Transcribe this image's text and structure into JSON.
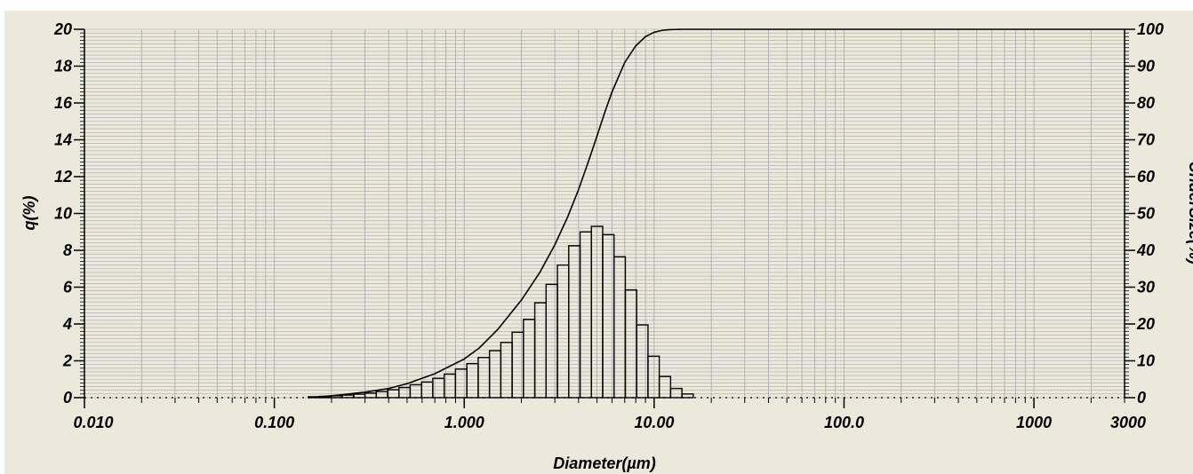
{
  "colors": {
    "background": "#ECE9DC",
    "grid": "#A8A8A8",
    "bars": "#000000",
    "curve": "#000000"
  },
  "chart_data": {
    "type": "bar",
    "xlabel": "Diameter(µm)",
    "ylabel": "q(%)",
    "y2label": "UnderSize(%)",
    "x_scale": "log",
    "xlim": [
      0.01,
      3000
    ],
    "ylim": [
      0,
      20
    ],
    "y2lim": [
      0,
      100
    ],
    "grid": true,
    "x_tick_labels": [
      "0.010",
      "0.100",
      "1.000",
      "10.00",
      "100.0",
      "1000",
      "3000"
    ],
    "x_tick_values": [
      0.01,
      0.1,
      1,
      10,
      100,
      1000,
      3000
    ],
    "y_tick_labels": [
      "0",
      "2",
      "4",
      "6",
      "8",
      "10",
      "12",
      "14",
      "16",
      "18",
      "20"
    ],
    "y2_tick_labels": [
      "0",
      "10",
      "20",
      "30",
      "40",
      "50",
      "60",
      "70",
      "80",
      "90",
      "100"
    ],
    "series": [
      {
        "type": "bar",
        "axis": "left",
        "bins": [
          {
            "lo": 0.151,
            "hi": 0.173,
            "q": 0.05
          },
          {
            "lo": 0.173,
            "hi": 0.199,
            "q": 0.07
          },
          {
            "lo": 0.199,
            "hi": 0.228,
            "q": 0.1
          },
          {
            "lo": 0.228,
            "hi": 0.262,
            "q": 0.14
          },
          {
            "lo": 0.262,
            "hi": 0.3,
            "q": 0.19
          },
          {
            "lo": 0.3,
            "hi": 0.344,
            "q": 0.25
          },
          {
            "lo": 0.344,
            "hi": 0.395,
            "q": 0.33
          },
          {
            "lo": 0.395,
            "hi": 0.453,
            "q": 0.43
          },
          {
            "lo": 0.453,
            "hi": 0.519,
            "q": 0.55
          },
          {
            "lo": 0.519,
            "hi": 0.596,
            "q": 0.7
          },
          {
            "lo": 0.596,
            "hi": 0.683,
            "q": 0.85
          },
          {
            "lo": 0.683,
            "hi": 0.784,
            "q": 1.05
          },
          {
            "lo": 0.784,
            "hi": 0.899,
            "q": 1.28
          },
          {
            "lo": 0.899,
            "hi": 1.032,
            "q": 1.55
          },
          {
            "lo": 1.032,
            "hi": 1.184,
            "q": 1.85
          },
          {
            "lo": 1.184,
            "hi": 1.358,
            "q": 2.18
          },
          {
            "lo": 1.358,
            "hi": 1.558,
            "q": 2.55
          },
          {
            "lo": 1.558,
            "hi": 1.787,
            "q": 3.0
          },
          {
            "lo": 1.787,
            "hi": 2.05,
            "q": 3.55
          },
          {
            "lo": 2.05,
            "hi": 2.352,
            "q": 4.25
          },
          {
            "lo": 2.352,
            "hi": 2.698,
            "q": 5.15
          },
          {
            "lo": 2.698,
            "hi": 3.095,
            "q": 6.15
          },
          {
            "lo": 3.095,
            "hi": 3.55,
            "q": 7.2
          },
          {
            "lo": 3.55,
            "hi": 4.073,
            "q": 8.25
          },
          {
            "lo": 4.073,
            "hi": 4.672,
            "q": 9.0
          },
          {
            "lo": 4.672,
            "hi": 5.359,
            "q": 9.3
          },
          {
            "lo": 5.359,
            "hi": 6.148,
            "q": 8.85
          },
          {
            "lo": 6.148,
            "hi": 7.052,
            "q": 7.65
          },
          {
            "lo": 7.052,
            "hi": 8.09,
            "q": 5.85
          },
          {
            "lo": 8.09,
            "hi": 9.28,
            "q": 3.95
          },
          {
            "lo": 9.28,
            "hi": 10.64,
            "q": 2.25
          },
          {
            "lo": 10.64,
            "hi": 12.21,
            "q": 1.15
          },
          {
            "lo": 12.21,
            "hi": 14.01,
            "q": 0.5
          },
          {
            "lo": 14.01,
            "hi": 16.07,
            "q": 0.2
          }
        ]
      },
      {
        "type": "line",
        "axis": "right",
        "x": [
          0.151,
          0.2,
          0.3,
          0.4,
          0.5,
          0.7,
          1.0,
          1.2,
          1.5,
          2.0,
          2.5,
          3.0,
          3.5,
          4.0,
          4.5,
          5.0,
          5.5,
          6.0,
          7.0,
          8.0,
          9.0,
          10.0,
          11.0,
          12.0,
          14.0,
          3000
        ],
        "y": [
          0.0,
          0.5,
          1.5,
          2.5,
          3.8,
          6.5,
          10.5,
          13.5,
          18.5,
          26.5,
          34.0,
          41.5,
          49.0,
          56.5,
          64.0,
          71.0,
          77.5,
          83.0,
          91.0,
          95.5,
          98.0,
          99.2,
          99.7,
          99.9,
          100.0,
          100.0
        ]
      }
    ]
  }
}
